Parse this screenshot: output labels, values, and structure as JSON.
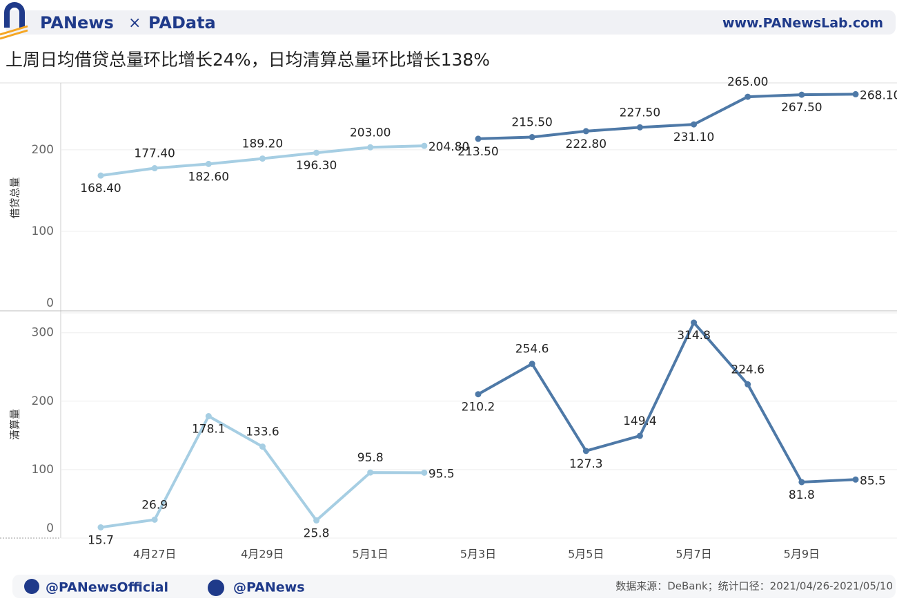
{
  "header": {
    "brand_left": "PANews",
    "brand_sep": "×",
    "brand_right": "PAData",
    "url": "www.PANewsLab.com"
  },
  "title": "上周日均借贷总量环比增长24%，日均清算总量环比增长138%",
  "chart_data": [
    {
      "type": "line",
      "ylabel": "借贷总量",
      "ylim": [
        0,
        282
      ],
      "yticks": [
        0,
        100,
        200
      ],
      "grid": true,
      "series": [
        {
          "color": "#a6cee3",
          "values": [
            168.4,
            177.4,
            182.6,
            189.2,
            196.3,
            203.0,
            204.8,
            null,
            null,
            null,
            null,
            null,
            null,
            null,
            null
          ],
          "value_labels": [
            "168.40",
            "177.40",
            "182.60",
            "189.20",
            "196.30",
            "203.00",
            "204.80",
            null,
            null,
            null,
            null,
            null,
            null,
            null,
            null
          ]
        },
        {
          "color": "#4e79a7",
          "values": [
            null,
            null,
            null,
            null,
            null,
            null,
            null,
            213.5,
            215.5,
            222.8,
            227.5,
            231.1,
            265.0,
            267.5,
            268.1
          ],
          "value_labels": [
            null,
            null,
            null,
            null,
            null,
            null,
            null,
            "213.50",
            "215.50",
            "222.80",
            "227.50",
            "231.10",
            "265.00",
            "267.50",
            "268.10"
          ]
        }
      ]
    },
    {
      "type": "line",
      "ylabel": "清算量",
      "ylim": [
        0,
        332
      ],
      "yticks": [
        0,
        100,
        200,
        300
      ],
      "grid": true,
      "categories": [
        null,
        "4月27日",
        null,
        "4月29日",
        null,
        "5月1日",
        null,
        "5月3日",
        null,
        "5月5日",
        null,
        "5月7日",
        null,
        "5月9日",
        null
      ],
      "series": [
        {
          "color": "#a6cee3",
          "values": [
            15.7,
            26.9,
            178.1,
            133.6,
            25.8,
            95.8,
            95.5,
            null,
            null,
            null,
            null,
            null,
            null,
            null,
            null
          ]
        },
        {
          "color": "#4e79a7",
          "values": [
            null,
            null,
            null,
            null,
            null,
            null,
            null,
            210.2,
            254.6,
            127.3,
            149.4,
            314.8,
            224.6,
            81.8,
            85.5
          ]
        }
      ]
    }
  ],
  "footer": {
    "twitter": "@PANewsOfficial",
    "weibo": "@PANews",
    "source": "数据来源：DeBank；统计口径：2021/04/26-2021/05/10"
  }
}
